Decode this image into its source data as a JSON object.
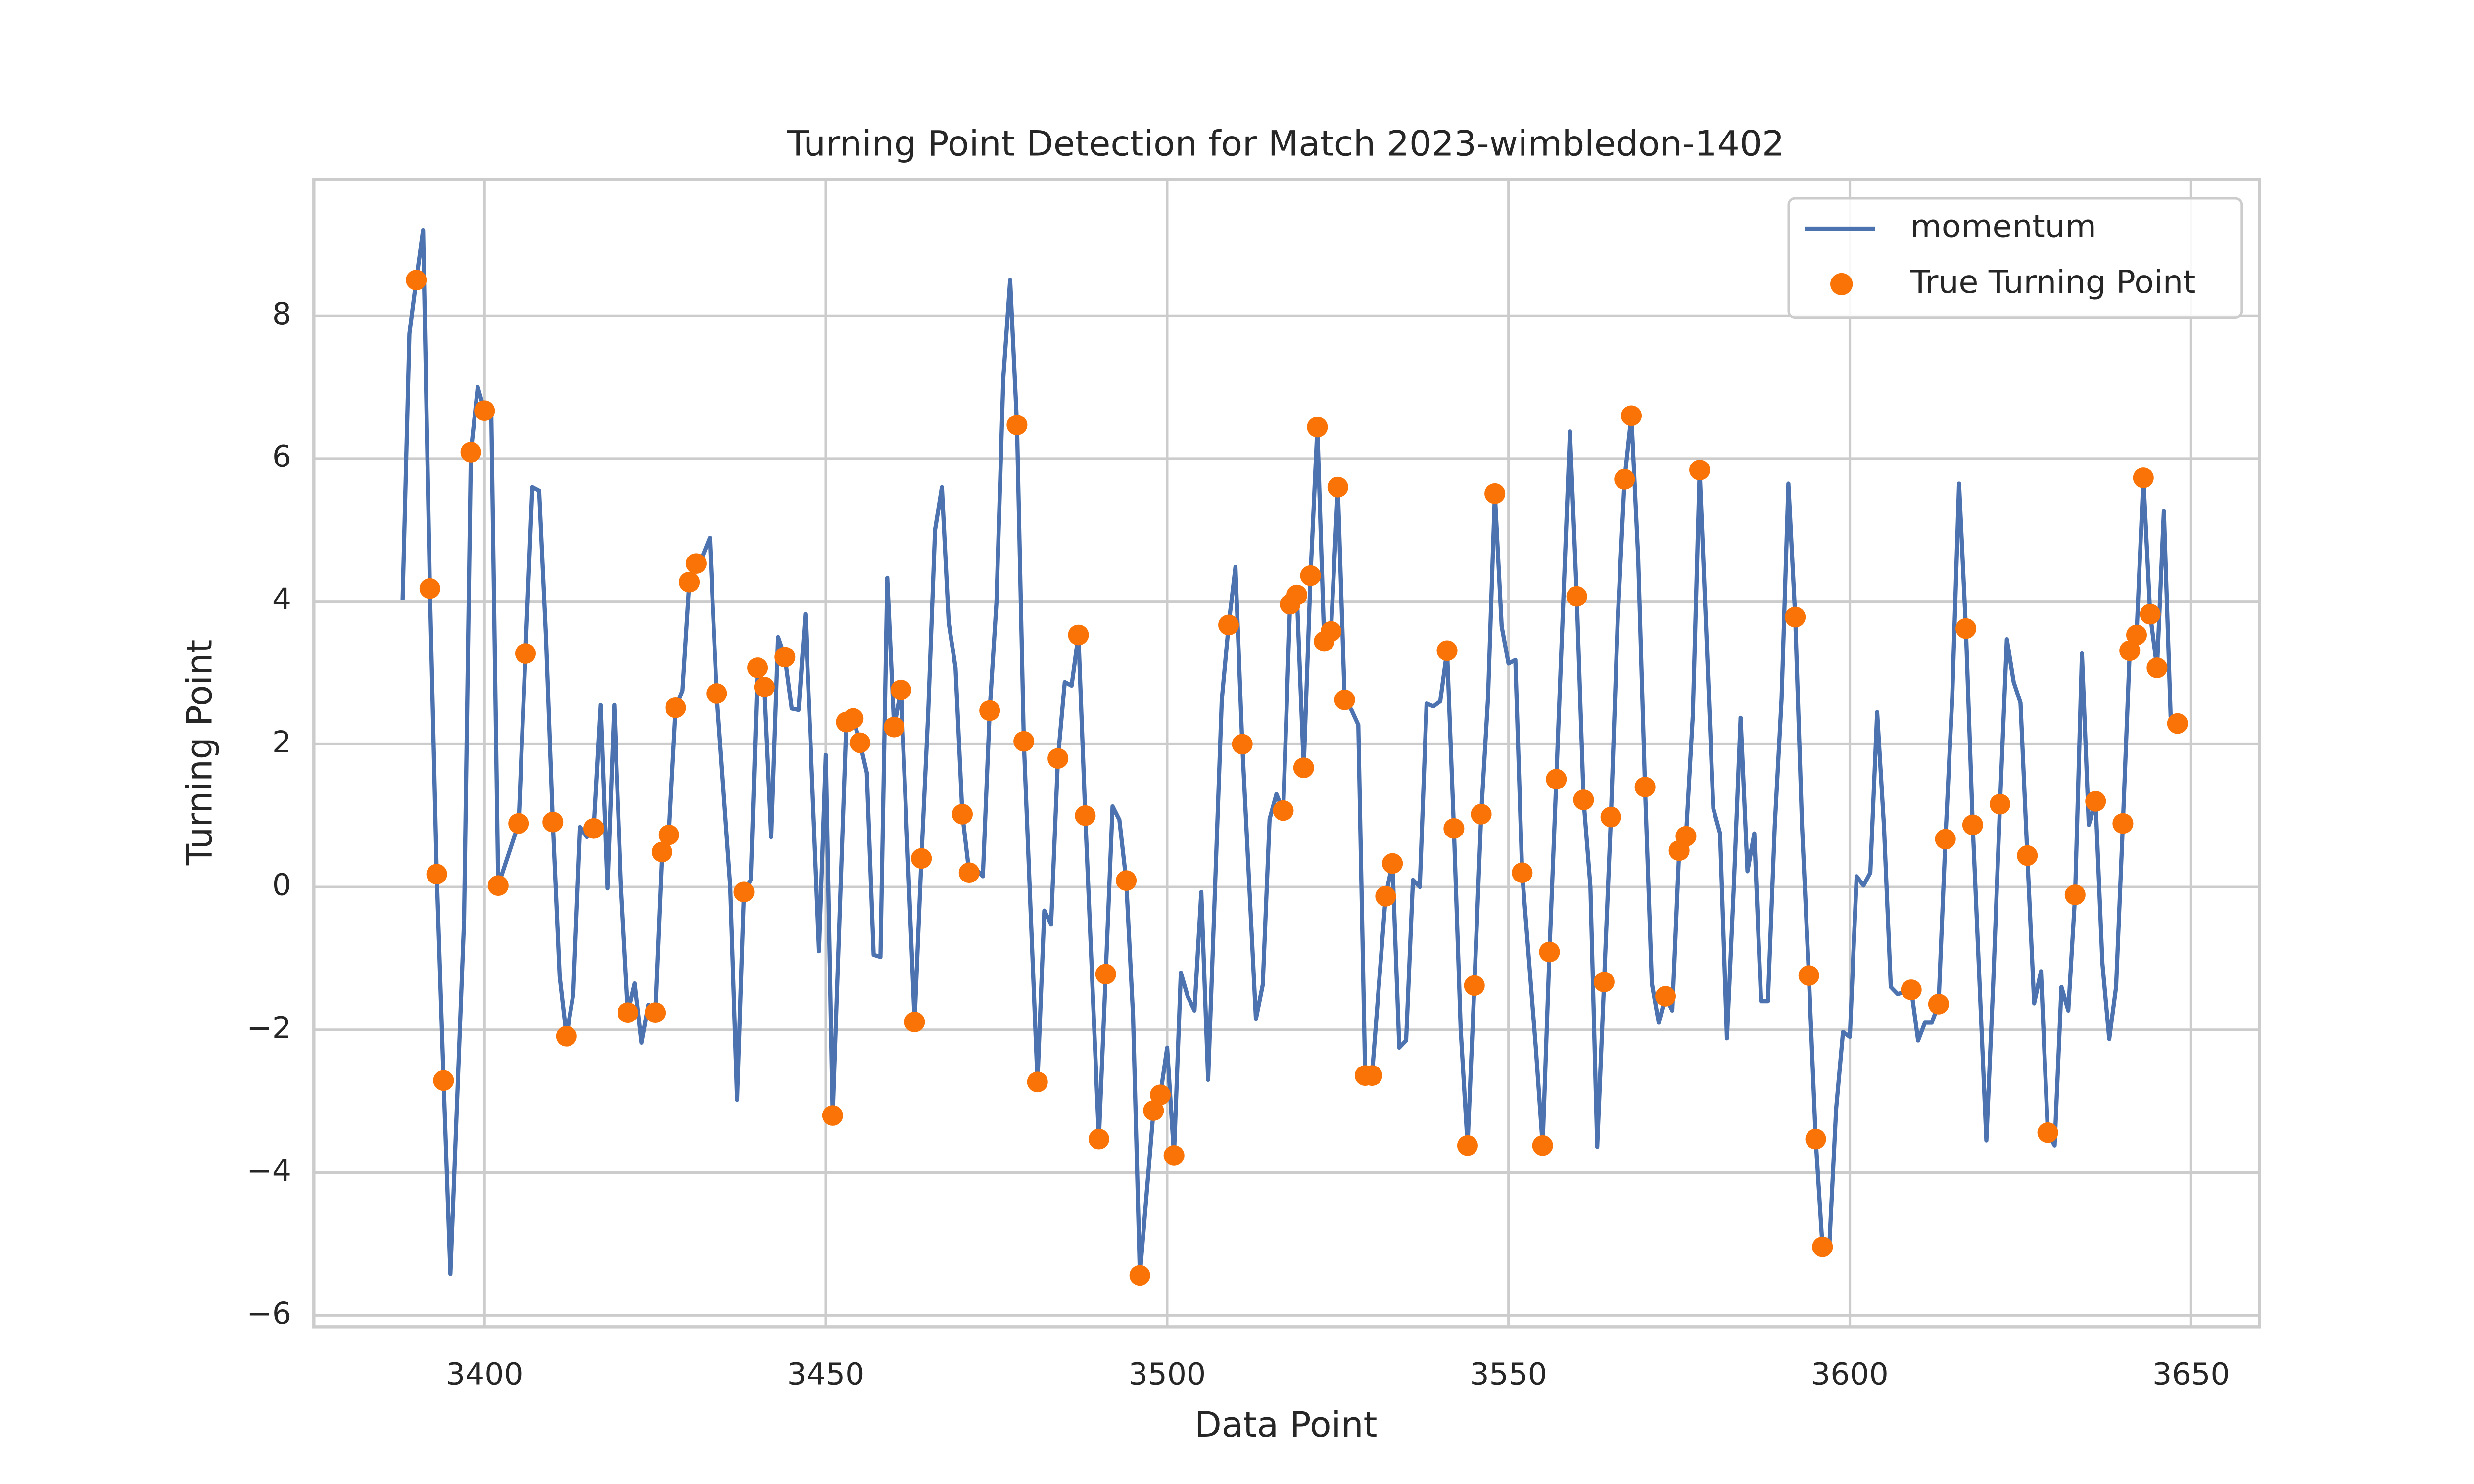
{
  "chart_data": {
    "type": "line",
    "title": "Turning Point Detection for Match 2023-wimbledon-1402",
    "x_label": "Data Point",
    "y_label": "Turning Point",
    "xlim": [
      3375,
      3660
    ],
    "ylim": [
      -6.16,
      9.91
    ],
    "xticks": [
      3400,
      3450,
      3500,
      3550,
      3600,
      3650
    ],
    "yticks": [
      {
        "value": -6,
        "label": "−6"
      },
      {
        "value": -4,
        "label": "−4"
      },
      {
        "value": -2,
        "label": "−2"
      },
      0,
      2,
      4,
      6,
      8
    ],
    "grid": true,
    "legend": "upper right",
    "series": [
      {
        "name": "momentum",
        "type": "line",
        "color": "#4c72b0",
        "x": [
          3388,
          3389,
          3390,
          3391,
          3392,
          3393,
          3394,
          3395,
          3397,
          3398,
          3399,
          3400,
          3401,
          3402,
          3404,
          3405,
          3406,
          3407,
          3408,
          3409,
          3410,
          3411,
          3412,
          3413,
          3414,
          3415,
          3416,
          3417,
          3418,
          3419,
          3420,
          3421,
          3422,
          3423,
          3424,
          3425,
          3426,
          3427,
          3428,
          3429,
          3430,
          3431,
          3432,
          3433,
          3434,
          3436,
          3437,
          3438,
          3439,
          3440,
          3441,
          3442,
          3443,
          3444,
          3445,
          3446,
          3447,
          3449,
          3450,
          3451,
          3453,
          3454,
          3455,
          3456,
          3457,
          3458,
          3459,
          3460,
          3461,
          3463,
          3464,
          3465,
          3466,
          3467,
          3468,
          3469,
          3470,
          3471,
          3472,
          3473,
          3474,
          3475,
          3476,
          3477,
          3478,
          3479,
          3481,
          3482,
          3483,
          3484,
          3485,
          3486,
          3487,
          3488,
          3490,
          3491,
          3492,
          3493,
          3494,
          3495,
          3496,
          3498,
          3499,
          3500,
          3501,
          3502,
          3503,
          3504,
          3505,
          3506,
          3508,
          3509,
          3510,
          3511,
          3513,
          3514,
          3515,
          3516,
          3517,
          3518,
          3519,
          3520,
          3521,
          3522,
          3523,
          3524,
          3525,
          3526,
          3527,
          3528,
          3529,
          3530,
          3532,
          3533,
          3534,
          3535,
          3536,
          3537,
          3538,
          3539,
          3540,
          3541,
          3542,
          3543,
          3544,
          3545,
          3546,
          3547,
          3548,
          3549,
          3550,
          3551,
          3552,
          3554,
          3555,
          3556,
          3557,
          3559,
          3560,
          3561,
          3562,
          3563,
          3564,
          3565,
          3566,
          3567,
          3568,
          3569,
          3570,
          3571,
          3572,
          3573,
          3574,
          3575,
          3576,
          3577,
          3578,
          3579,
          3580,
          3581,
          3582,
          3583,
          3584,
          3585,
          3586,
          3587,
          3588,
          3589,
          3590,
          3591,
          3592,
          3593,
          3594,
          3595,
          3596,
          3597,
          3598,
          3599,
          3600,
          3601,
          3602,
          3603,
          3604,
          3605,
          3606,
          3607,
          3609,
          3610,
          3611,
          3612,
          3613,
          3614,
          3615,
          3616,
          3617,
          3618,
          3620,
          3621,
          3622,
          3623,
          3624,
          3625,
          3626,
          3627,
          3628,
          3629,
          3630,
          3631,
          3632,
          3633,
          3634,
          3635,
          3636,
          3637,
          3638,
          3639,
          3640,
          3641,
          3642,
          3643,
          3644,
          3645,
          3646,
          3647,
          3648
        ],
        "values": [
          4.02,
          7.75,
          8.5,
          9.2,
          4.18,
          0.18,
          -2.71,
          -5.42,
          -0.47,
          6.09,
          7.0,
          6.67,
          6.6,
          0.02,
          0.6,
          0.89,
          3.27,
          5.6,
          5.55,
          3.5,
          0.91,
          -1.25,
          -2.09,
          -1.5,
          0.84,
          0.7,
          0.82,
          2.55,
          -0.02,
          2.55,
          0,
          -1.76,
          -1.35,
          -2.18,
          -1.65,
          -1.76,
          0.49,
          0.73,
          2.51,
          2.75,
          4.27,
          4.53,
          4.65,
          4.89,
          2.71,
          0,
          -2.98,
          -0.07,
          0.1,
          3.07,
          2.8,
          0.7,
          3.5,
          3.22,
          2.5,
          2.48,
          3.82,
          -0.9,
          1.85,
          -3.2,
          2.31,
          2.36,
          2.02,
          1.6,
          -0.95,
          -0.98,
          4.33,
          2.24,
          2.76,
          -1.89,
          0.4,
          2.45,
          5.0,
          5.6,
          3.7,
          3.07,
          1.02,
          0.2,
          0.25,
          0.15,
          2.47,
          4.0,
          7.13,
          8.5,
          6.47,
          2.04,
          -2.73,
          -0.33,
          -0.52,
          1.8,
          2.87,
          2.82,
          3.53,
          1.0,
          -3.53,
          -1.22,
          1.13,
          0.94,
          0.09,
          -1.8,
          -5.44,
          -3.13,
          -2.91,
          -2.25,
          -3.76,
          -1.2,
          -1.53,
          -1.73,
          -0.07,
          -2.7,
          2.62,
          3.67,
          4.48,
          2.0,
          -1.85,
          -1.37,
          0.95,
          1.3,
          1.07,
          3.96,
          4.09,
          1.67,
          4.36,
          6.44,
          3.44,
          3.58,
          5.6,
          2.62,
          2.48,
          2.27,
          -2.64,
          -2.64,
          -0.13,
          0.33,
          -2.25,
          -2.15,
          0.1,
          0,
          2.57,
          2.53,
          2.6,
          3.31,
          0.82,
          -2.0,
          -3.62,
          -1.38,
          1.02,
          2.65,
          5.51,
          3.65,
          3.13,
          3.18,
          0.2,
          -2.25,
          -3.62,
          -0.91,
          1.51,
          6.38,
          4.07,
          1.22,
          0,
          -3.64,
          -1.33,
          0.98,
          3.75,
          5.71,
          6.6,
          4.6,
          1.4,
          -1.35,
          -1.9,
          -1.53,
          -1.73,
          0.51,
          0.71,
          2.4,
          5.84,
          3.5,
          1.1,
          0.75,
          -2.12,
          0,
          2.37,
          0.22,
          0.75,
          -1.6,
          -1.6,
          0.85,
          2.63,
          5.65,
          3.78,
          0.85,
          -1.24,
          -3.53,
          -5.04,
          -5.02,
          -3.1,
          -2.03,
          -2.1,
          0.15,
          0.02,
          0.2,
          2.45,
          0.85,
          -1.4,
          -1.5,
          -1.44,
          -2.15,
          -1.9,
          -1.9,
          -1.64,
          0.67,
          2.65,
          5.65,
          3.62,
          0.87,
          -3.55,
          -1.35,
          1.16,
          3.47,
          2.87,
          2.58,
          0.44,
          -1.63,
          -1.18,
          -3.44,
          -3.62,
          -1.4,
          -1.73,
          -0.11,
          3.27,
          0.87,
          1.2,
          -1.07,
          -2.13,
          -1.4,
          0.89,
          3.31,
          3.53,
          5.73,
          3.82,
          3.07,
          5.27,
          2.38,
          2.29
        ]
      },
      {
        "name": "True Turning Point",
        "type": "scatter",
        "color": "#f97306",
        "x": [
          3390,
          3392,
          3393,
          3394,
          3398,
          3400,
          3402,
          3405,
          3406,
          3410,
          3412,
          3416,
          3421,
          3425,
          3426,
          3427,
          3428,
          3430,
          3431,
          3434,
          3438,
          3440,
          3441,
          3444,
          3451,
          3453,
          3454,
          3455,
          3460,
          3461,
          3463,
          3464,
          3470,
          3471,
          3474,
          3478,
          3479,
          3481,
          3484,
          3487,
          3488,
          3490,
          3491,
          3494,
          3496,
          3498,
          3499,
          3501,
          3509,
          3511,
          3517,
          3518,
          3519,
          3520,
          3521,
          3522,
          3523,
          3524,
          3525,
          3526,
          3529,
          3530,
          3532,
          3533,
          3541,
          3542,
          3544,
          3545,
          3546,
          3548,
          3552,
          3555,
          3556,
          3557,
          3560,
          3561,
          3564,
          3565,
          3567,
          3568,
          3570,
          3573,
          3575,
          3576,
          3578,
          3592,
          3594,
          3595,
          3596,
          3609,
          3613,
          3614,
          3617,
          3618,
          3622,
          3626,
          3629,
          3633,
          3636,
          3640,
          3641,
          3642,
          3643,
          3644,
          3645,
          3648
        ],
        "values": [
          8.5,
          4.18,
          0.18,
          -2.71,
          6.09,
          6.67,
          0.02,
          0.89,
          3.27,
          0.91,
          -2.09,
          0.82,
          -1.76,
          -1.76,
          0.49,
          0.73,
          2.51,
          4.27,
          4.53,
          2.71,
          -0.07,
          3.07,
          2.8,
          3.22,
          -3.2,
          2.31,
          2.36,
          2.02,
          2.24,
          2.76,
          -1.89,
          0.4,
          1.02,
          0.2,
          2.47,
          6.47,
          2.04,
          -2.73,
          1.8,
          3.53,
          1.0,
          -3.53,
          -1.22,
          0.09,
          -5.44,
          -3.13,
          -2.91,
          -3.76,
          3.67,
          2.0,
          1.07,
          3.96,
          4.09,
          1.67,
          4.36,
          6.44,
          3.44,
          3.58,
          5.6,
          2.62,
          -2.64,
          -2.64,
          -0.13,
          0.33,
          3.31,
          0.82,
          -3.62,
          -1.38,
          1.02,
          5.51,
          0.2,
          -3.62,
          -0.91,
          1.51,
          4.07,
          1.22,
          -1.33,
          0.98,
          5.71,
          6.6,
          1.4,
          -1.53,
          0.51,
          0.71,
          5.84,
          3.78,
          -1.24,
          -3.53,
          -5.04,
          -1.44,
          -1.64,
          0.67,
          3.62,
          0.87,
          1.16,
          0.44,
          -3.44,
          -0.11,
          1.2,
          0.89,
          3.31,
          3.53,
          5.73,
          3.82,
          3.07,
          2.29
        ]
      }
    ]
  }
}
